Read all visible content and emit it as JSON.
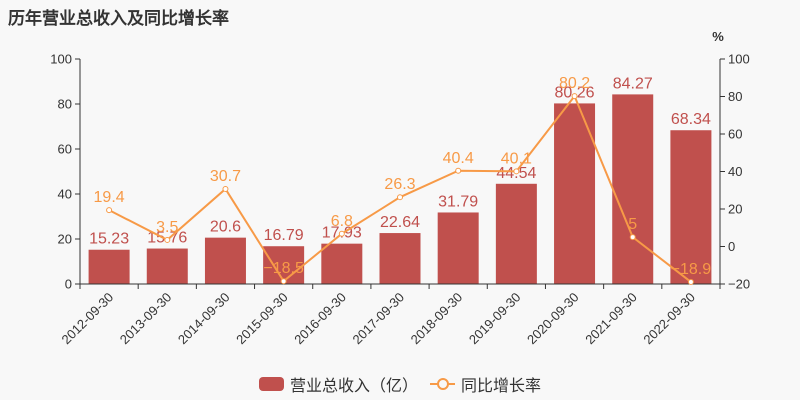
{
  "title": "历年营业总收入及同比增长率",
  "colors": {
    "bar": "#c0504d",
    "line": "#f79a47",
    "axis": "#333333",
    "background": "#f8f8f8"
  },
  "legend": {
    "bar_label": "营业总收入（亿）",
    "line_label": "同比增长率"
  },
  "right_axis_unit": "%",
  "chart_data": {
    "type": "bar+line",
    "title": "历年营业总收入及同比增长率",
    "categories": [
      "2012-09-30",
      "2013-09-30",
      "2014-09-30",
      "2015-09-30",
      "2016-09-30",
      "2017-09-30",
      "2018-09-30",
      "2019-09-30",
      "2020-09-30",
      "2021-09-30",
      "2022-09-30"
    ],
    "series": [
      {
        "name": "营业总收入（亿）",
        "type": "bar",
        "axis": "left",
        "values": [
          15.23,
          15.76,
          20.6,
          16.79,
          17.93,
          22.64,
          31.79,
          44.54,
          80.26,
          84.27,
          68.34
        ]
      },
      {
        "name": "同比增长率",
        "type": "line",
        "axis": "right",
        "values": [
          19.4,
          3.5,
          30.7,
          -18.5,
          6.8,
          26.3,
          40.4,
          40.1,
          80.2,
          5,
          -18.9
        ]
      }
    ],
    "left_axis": {
      "ylim": [
        0,
        100
      ],
      "ticks": [
        0,
        20,
        40,
        60,
        80,
        100
      ]
    },
    "right_axis": {
      "ylim": [
        -20,
        100
      ],
      "ticks": [
        -20,
        0,
        20,
        40,
        60,
        80,
        100
      ],
      "unit": "%"
    },
    "xlabel": "",
    "ylabel": "",
    "grid": false,
    "legend_position": "bottom"
  }
}
